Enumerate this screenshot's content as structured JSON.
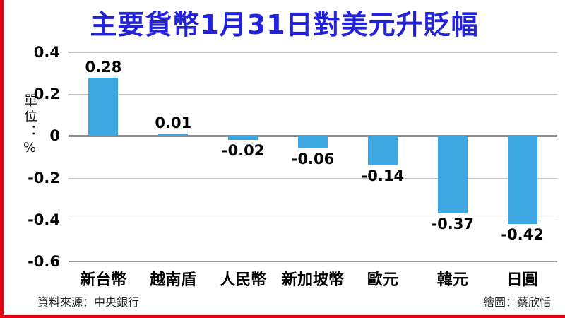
{
  "footer": {
    "source": "資料來源：中央銀行",
    "credit": "繪圖：蔡欣恬"
  },
  "colors": {
    "bar": "#3ea6e0",
    "title": "#2222dd",
    "accent": "#e60012",
    "grid": "#c4c4c4",
    "zero_line": "#8f8f8f"
  },
  "chart_data": {
    "type": "bar",
    "title": "主要貨幣1月31日對美元升貶幅",
    "unit_label": "單位：%",
    "categories": [
      "新台幣",
      "越南盾",
      "人民幣",
      "新加坡幣",
      "歐元",
      "韓元",
      "日圓"
    ],
    "values": [
      0.28,
      0.01,
      -0.02,
      -0.06,
      -0.14,
      -0.37,
      -0.42
    ],
    "value_labels": [
      "0.28",
      "0.01",
      "-0.02",
      "-0.06",
      "-0.14",
      "-0.37",
      "-0.42"
    ],
    "ylim": [
      -0.6,
      0.4
    ],
    "ytick_labels": [
      "0.4",
      "0.2",
      "0",
      "-0.2",
      "-0.4",
      "-0.6"
    ],
    "ytick_values": [
      0.4,
      0.2,
      0,
      -0.2,
      -0.4,
      -0.6
    ],
    "grid": true,
    "legend": false,
    "xlabel": "",
    "ylabel": "單位：%"
  }
}
